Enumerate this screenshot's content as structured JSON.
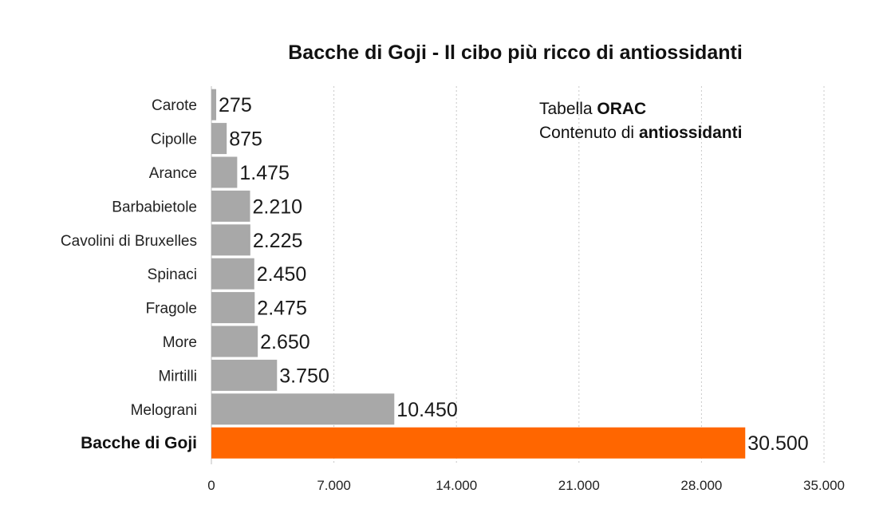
{
  "chart_data": {
    "type": "bar",
    "orientation": "horizontal",
    "title": "Bacche di Goji - Il cibo più ricco di antiossidanti",
    "categories": [
      "Carote",
      "Cipolle",
      "Arance",
      "Barbabietole",
      "Cavolini di Bruxelles",
      "Spinaci",
      "Fragole",
      "More",
      "Mirtilli",
      "Melograni",
      "Bacche di Goji"
    ],
    "values": [
      275,
      875,
      1475,
      2210,
      2225,
      2450,
      2475,
      2650,
      3750,
      10450,
      30500
    ],
    "value_labels": [
      "275",
      "875",
      "1.475",
      "2.210",
      "2.225",
      "2.450",
      "2.475",
      "2.650",
      "3.750",
      "10.450",
      "30.500"
    ],
    "highlight_index": 10,
    "colors": {
      "bar": "#a8a8a8",
      "highlight": "#ff6600",
      "grid": "#c8c8c8"
    },
    "xlim": [
      0,
      35000
    ],
    "x_ticks": [
      0,
      7000,
      14000,
      21000,
      28000,
      35000
    ],
    "x_tick_labels": [
      "0",
      "7.000",
      "14.000",
      "21.000",
      "28.000",
      "35.000"
    ],
    "grid": true,
    "annotation": {
      "line1_prefix": "Tabella ",
      "line1_bold": "ORAC",
      "line2_prefix": "Contenuto di ",
      "line2_bold": "antiossidanti"
    },
    "xlabel": "",
    "ylabel": ""
  }
}
